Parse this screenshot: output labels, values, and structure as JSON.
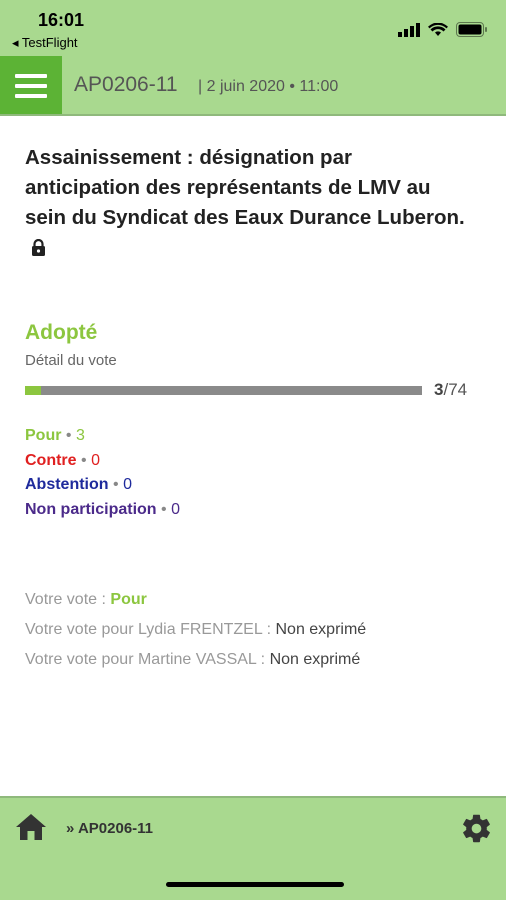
{
  "status": {
    "time": "16:01",
    "back_label": "◂ TestFlight"
  },
  "header": {
    "code": "AP0206-11",
    "date": "| 2 juin 2020 • 11:00"
  },
  "title": "Assainissement : désignation par anticipation des représentants de LMV au sein du Syndicat des Eaux Durance Luberon.",
  "result": {
    "label": "Adopté",
    "detail": "Détail du vote",
    "count": "3",
    "total": "/74",
    "progress_fraction": 0.0405
  },
  "votes": [
    {
      "label": "Pour",
      "value": "3"
    },
    {
      "label": "Contre",
      "value": "0"
    },
    {
      "label": "Abstention",
      "value": "0"
    },
    {
      "label": "Non participation",
      "value": "0"
    }
  ],
  "my_votes": {
    "self_label": "Votre vote : ",
    "self_value": "Pour",
    "proxy1_label": "Votre vote pour Lydia FRENTZEL : ",
    "proxy1_value": "Non exprimé",
    "proxy2_label": "Votre vote pour Martine VASSAL : ",
    "proxy2_value": "Non exprimé"
  },
  "footer": {
    "breadcrumb": "» AP0206-11"
  },
  "colors": {
    "header_green": "#a9d98f",
    "menu_green": "#5cb335",
    "pour": "#8cc63f",
    "contre": "#e02020",
    "abstention": "#1e2a9c",
    "non_participation": "#4b2a8a"
  }
}
